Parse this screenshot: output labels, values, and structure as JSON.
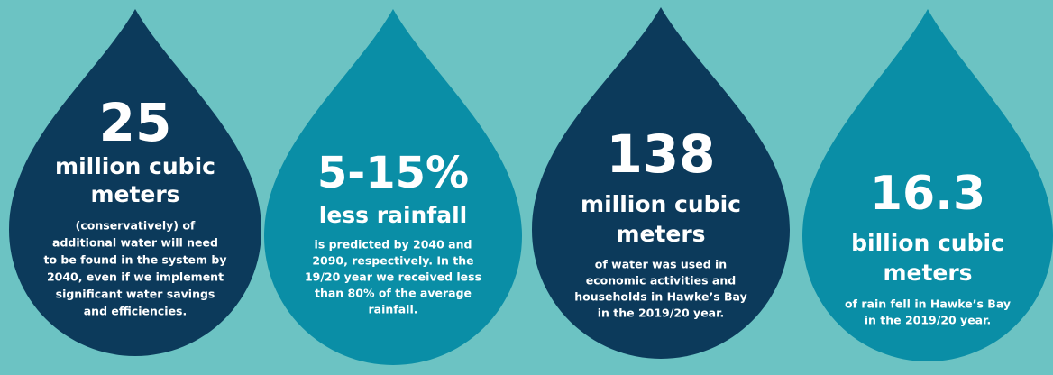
{
  "drops": [
    {
      "number": "25",
      "headline": [
        "million cubic",
        "meters"
      ],
      "body": [
        "(conservatively) of",
        "additional water will need",
        "to be found in the system by",
        "2040, even if we implement",
        "significant water savings",
        "and efficiencies."
      ]
    },
    {
      "number": "5-15%",
      "headline": [
        "less rainfall"
      ],
      "body": [
        "is predicted by 2040 and",
        "2090, respectively. In the",
        "19/20 year we received less",
        "than 80% of the average",
        "rainfall."
      ]
    },
    {
      "number": "138",
      "headline": [
        "million cubic",
        "meters"
      ],
      "body": [
        "of water was used in",
        "economic activities and",
        "households in Hawke’s Bay",
        "in the 2019/20 year."
      ]
    },
    {
      "number": "16.3",
      "headline": [
        "billion cubic",
        "meters"
      ],
      "body": [
        "of rain fell in Hawke’s Bay",
        "in the 2019/20 year."
      ]
    }
  ]
}
